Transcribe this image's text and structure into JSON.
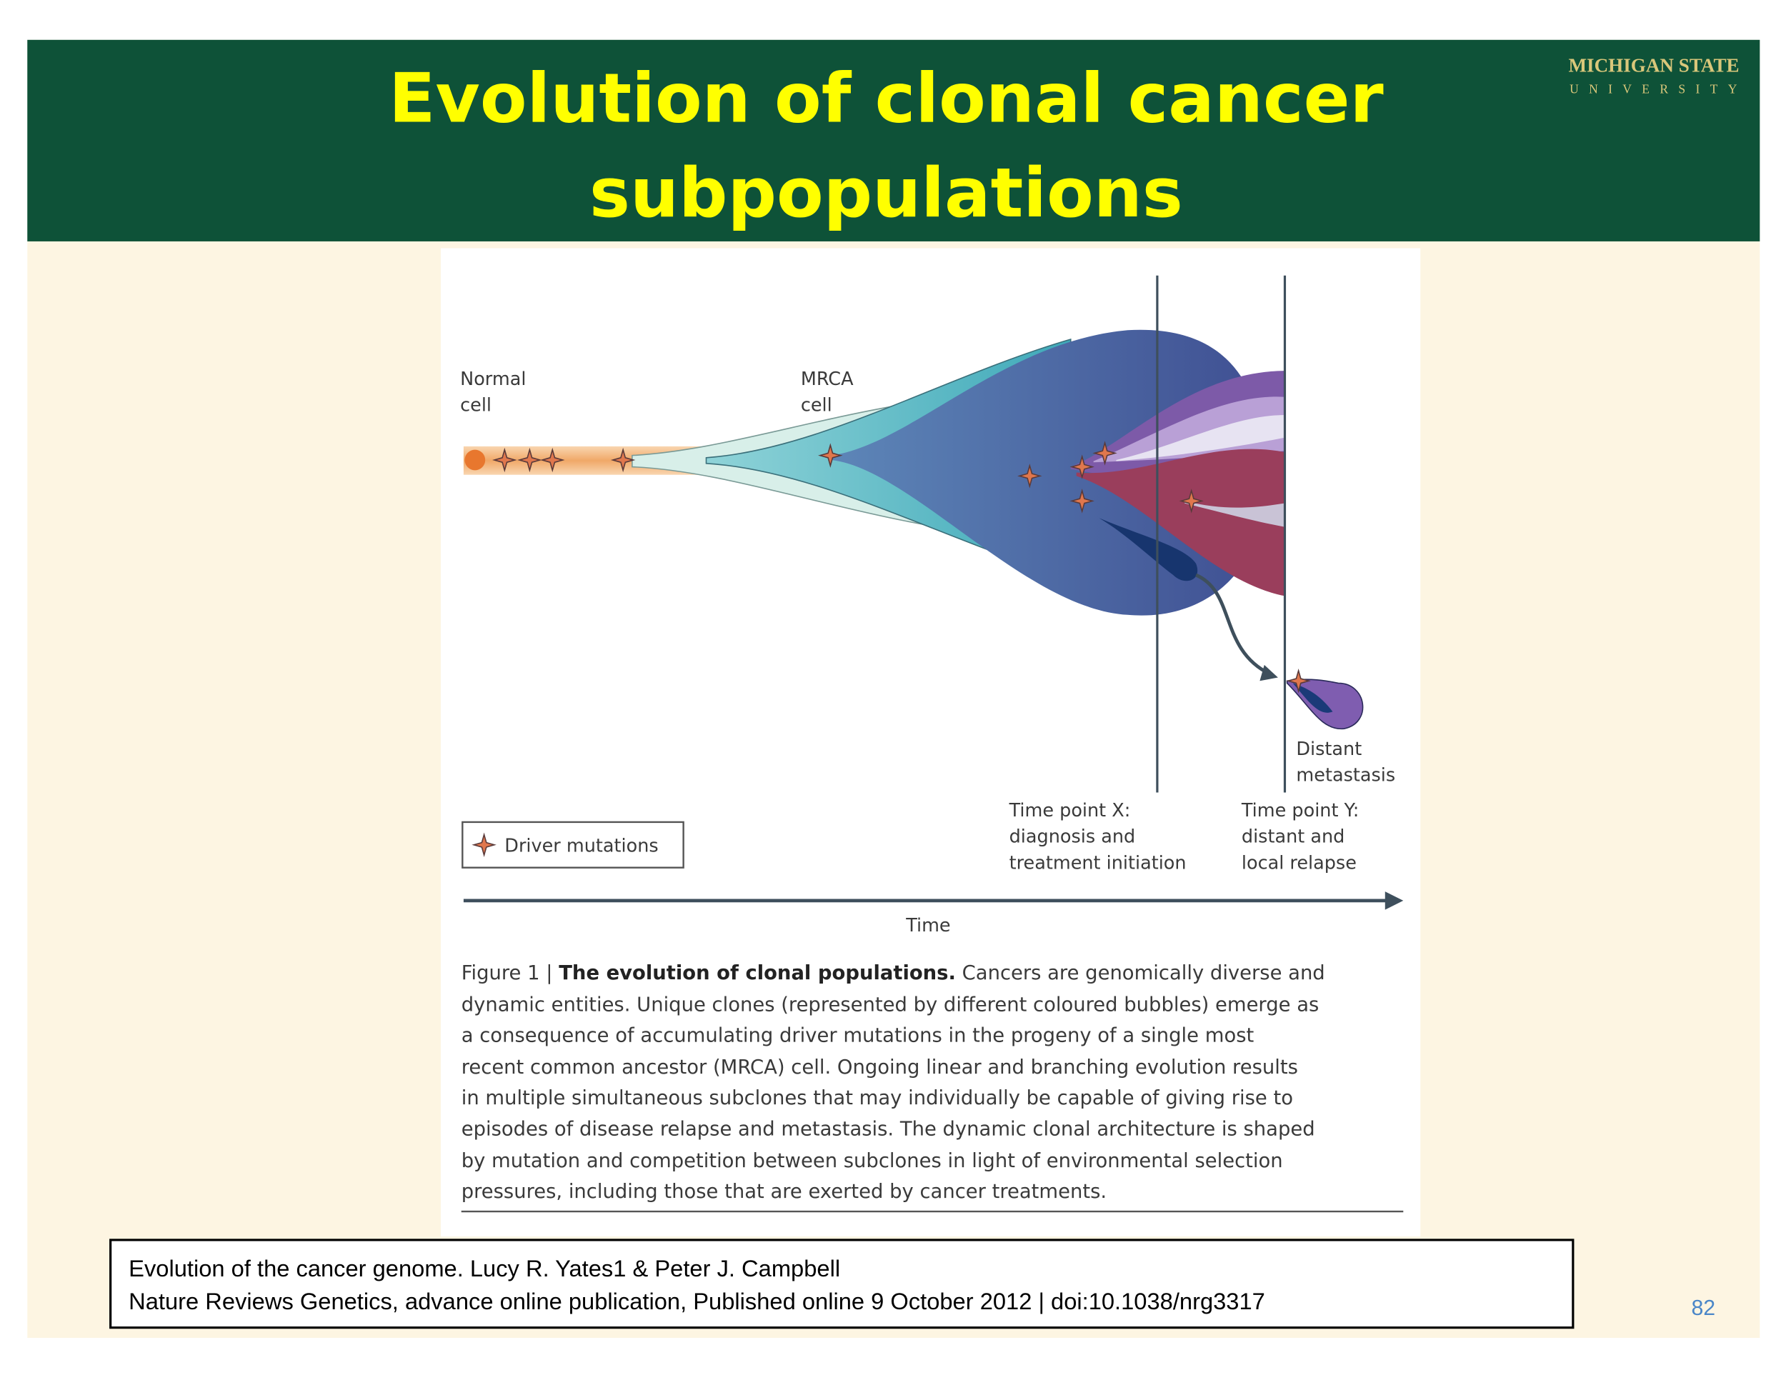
{
  "header": {
    "title_lines": [
      "Evolution of clonal cancer",
      "subpopulations"
    ],
    "logo": {
      "line1": "MICHIGAN STATE",
      "line2": "UNIVERSITY"
    }
  },
  "figure": {
    "normal_cell": [
      "Normal",
      "cell"
    ],
    "mrca_cell": [
      "MRCA",
      "cell"
    ],
    "distant_metastasis": [
      "Distant",
      "metastasis"
    ],
    "time_point_x": [
      "Time point X:",
      "diagnosis and",
      "treatment initiation"
    ],
    "time_point_y": [
      "Time point Y:",
      "distant and",
      "local relapse"
    ],
    "legend": "Driver mutations",
    "axis_label": "Time",
    "caption": {
      "figure_label": "Figure 1 |",
      "heading": "The evolution of clonal populations.",
      "lines": [
        "Cancers are genomically diverse and",
        "dynamic entities. Unique clones (represented by different coloured bubbles) emerge as",
        "a consequence of accumulating driver mutations in the progeny of a single most",
        "recent common ancestor (MRCA) cell. Ongoing linear and branching evolution results",
        "in multiple simultaneous subclones that may individually be capable of giving rise to",
        "episodes of disease relapse and metastasis. The dynamic clonal architecture is shaped",
        "by mutation and competition between subclones in light of environmental selection",
        "pressures, including those that are exerted by cancer treatments."
      ]
    }
  },
  "citation": {
    "line1": "Evolution of the cancer genome. Lucy R. Yates1 & Peter J. Campbell",
    "line2": "Nature Reviews Genetics, advance online publication, Published online 9 October 2012 | doi:10.1038/nrg3317"
  },
  "page_number": "82"
}
